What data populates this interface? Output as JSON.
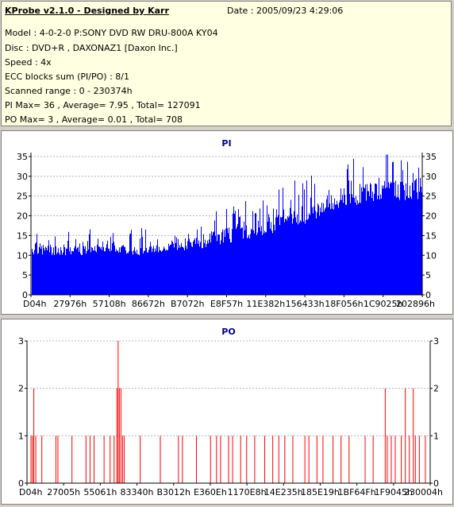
{
  "header": {
    "title": "KProbe v2.1.0 - Designed by Karr",
    "date": "Date : 2005/09/23 4:29:06",
    "lines": [
      "Model : 4-0-2-0 P:SONY    DVD RW DRU-800A  KY04",
      "Disc : DVD+R , DAXONAZ1 [Daxon Inc.]",
      "Speed : 4x",
      "ECC blocks sum (PI/PO) : 8/1",
      "Scanned range : 0 - 230374h",
      "PI Max= 36 , Average= 7.95 , Total= 127091",
      "PO Max= 3 , Average= 0.01 , Total= 708"
    ]
  },
  "colors": {
    "pi": "#0000ff",
    "po": "#ff0000",
    "grid": "#b4b4b4",
    "title": "#000080"
  },
  "chart_data": [
    {
      "type": "area",
      "title": "PI",
      "ylim": [
        0,
        36
      ],
      "yticks": [
        0,
        5,
        10,
        15,
        20,
        25,
        30,
        35
      ],
      "xticks": [
        "D04h",
        "27976h",
        "57108h",
        "86672h",
        "B7072h",
        "E8F57h",
        "11E382h",
        "156433h",
        "18F056h",
        "1C9025h",
        "202896h"
      ],
      "grid": true,
      "envelope": [
        [
          0,
          10,
          16
        ],
        [
          0.05,
          10,
          15
        ],
        [
          0.1,
          10,
          14
        ],
        [
          0.15,
          10,
          15
        ],
        [
          0.2,
          11,
          17
        ],
        [
          0.25,
          10,
          14
        ],
        [
          0.3,
          10,
          15
        ],
        [
          0.35,
          11,
          15
        ],
        [
          0.4,
          11,
          17
        ],
        [
          0.45,
          12,
          19
        ],
        [
          0.5,
          13,
          21
        ],
        [
          0.55,
          14,
          22
        ],
        [
          0.6,
          15,
          23
        ],
        [
          0.65,
          16,
          25
        ],
        [
          0.7,
          18,
          27
        ],
        [
          0.75,
          20,
          29
        ],
        [
          0.8,
          22,
          31
        ],
        [
          0.85,
          23,
          33
        ],
        [
          0.9,
          24,
          35
        ],
        [
          0.95,
          24,
          35
        ],
        [
          1,
          24,
          34
        ]
      ]
    },
    {
      "type": "bar",
      "title": "PO",
      "ylim": [
        0,
        3
      ],
      "yticks": [
        0,
        1,
        2,
        3
      ],
      "xticks": [
        "D04h",
        "27005h",
        "55061h",
        "83340h",
        "B3012h",
        "E360Eh",
        "1170E8h",
        "14E235h",
        "185E19h",
        "1BF64Fh",
        "1F9045h",
        "230004h"
      ],
      "grid": true,
      "values": [
        [
          0.008,
          1
        ],
        [
          0.012,
          1
        ],
        [
          0.015,
          2
        ],
        [
          0.02,
          1
        ],
        [
          0.035,
          1
        ],
        [
          0.07,
          1
        ],
        [
          0.075,
          1
        ],
        [
          0.11,
          1
        ],
        [
          0.145,
          1
        ],
        [
          0.155,
          1
        ],
        [
          0.165,
          1
        ],
        [
          0.19,
          1
        ],
        [
          0.205,
          1
        ],
        [
          0.215,
          1
        ],
        [
          0.222,
          2
        ],
        [
          0.225,
          3
        ],
        [
          0.228,
          2
        ],
        [
          0.232,
          2
        ],
        [
          0.236,
          1
        ],
        [
          0.24,
          1
        ],
        [
          0.28,
          1
        ],
        [
          0.33,
          1
        ],
        [
          0.375,
          1
        ],
        [
          0.385,
          1
        ],
        [
          0.42,
          1
        ],
        [
          0.455,
          1
        ],
        [
          0.47,
          1
        ],
        [
          0.48,
          1
        ],
        [
          0.5,
          1
        ],
        [
          0.51,
          1
        ],
        [
          0.53,
          1
        ],
        [
          0.545,
          1
        ],
        [
          0.565,
          1
        ],
        [
          0.59,
          1
        ],
        [
          0.61,
          1
        ],
        [
          0.625,
          1
        ],
        [
          0.64,
          1
        ],
        [
          0.66,
          1
        ],
        [
          0.69,
          1
        ],
        [
          0.7,
          1
        ],
        [
          0.72,
          1
        ],
        [
          0.735,
          1
        ],
        [
          0.76,
          1
        ],
        [
          0.78,
          1
        ],
        [
          0.8,
          1
        ],
        [
          0.84,
          1
        ],
        [
          0.86,
          1
        ],
        [
          0.89,
          2
        ],
        [
          0.895,
          1
        ],
        [
          0.905,
          1
        ],
        [
          0.915,
          1
        ],
        [
          0.93,
          1
        ],
        [
          0.94,
          2
        ],
        [
          0.95,
          1
        ],
        [
          0.96,
          2
        ],
        [
          0.965,
          1
        ],
        [
          0.975,
          1
        ],
        [
          0.99,
          1
        ]
      ]
    }
  ]
}
